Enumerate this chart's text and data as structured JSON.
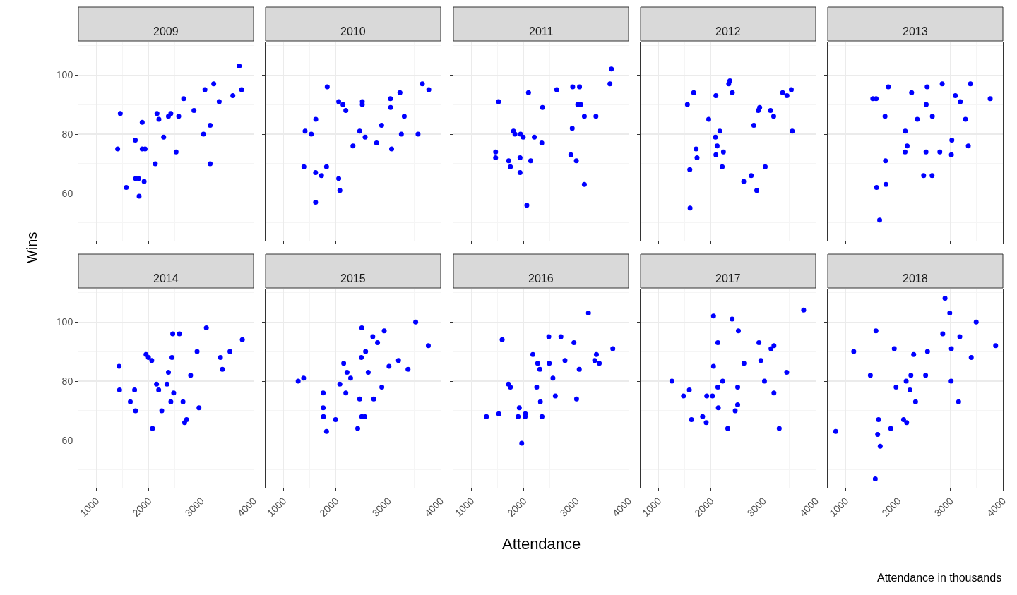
{
  "chart_data": [
    {
      "type": "scatter",
      "title": "2009",
      "ylabel": "Wins",
      "color": "#0000ff",
      "marker": "circle",
      "grid": true,
      "tick_labels": "y",
      "xlim": [
        660,
        4000
      ],
      "ylim": [
        44,
        111
      ],
      "xticks": [
        1000,
        2000,
        3000,
        4000
      ],
      "yticks": [
        60,
        80,
        100
      ],
      "x": [
        3727,
        3241,
        3073,
        3773,
        3605,
        3345,
        2668,
        2864,
        1459,
        2159,
        2423,
        2377,
        2573,
        2195,
        1877,
        3173,
        3045,
        2286,
        1745,
        1409,
        1877,
        1932,
        2523,
        2127,
        3173,
        1750,
        1809,
        1914,
        1573,
        1818
      ],
      "values": [
        103,
        97,
        95,
        95,
        93,
        91,
        92,
        88,
        87,
        87,
        87,
        86,
        86,
        85,
        84,
        83,
        80,
        79,
        78,
        75,
        75,
        75,
        74,
        70,
        70,
        65,
        65,
        64,
        62,
        59
      ]
    },
    {
      "type": "scatter",
      "title": "2010",
      "color": "#0000ff",
      "marker": "circle",
      "grid": true,
      "tick_labels": false,
      "xlim": [
        660,
        4000
      ],
      "ylim": [
        44,
        111
      ],
      "xticks": [
        1000,
        2000,
        3000,
        4000
      ],
      "yticks": [
        60,
        80,
        100
      ],
      "x": [
        1836,
        3650,
        3773,
        3223,
        3041,
        2055,
        2136,
        2191,
        2505,
        2505,
        3045,
        3305,
        1618,
        2873,
        2455,
        1414,
        1532,
        3250,
        3568,
        2559,
        2777,
        2327,
        3064,
        1391,
        1823,
        1614,
        1727,
        2055,
        2077,
        1614
      ],
      "values": [
        96,
        97,
        95,
        94,
        92,
        91,
        90,
        88,
        91,
        90,
        89,
        86,
        85,
        83,
        81,
        81,
        80,
        80,
        80,
        79,
        77,
        76,
        75,
        69,
        69,
        67,
        66,
        65,
        61,
        57
      ]
    },
    {
      "type": "scatter",
      "title": "2011",
      "color": "#0000ff",
      "marker": "circle",
      "grid": true,
      "tick_labels": false,
      "xlim": [
        660,
        4000
      ],
      "ylim": [
        44,
        111
      ],
      "xticks": [
        1000,
        2000,
        3000,
        4000
      ],
      "yticks": [
        60,
        80,
        100
      ],
      "x": [
        3673,
        3645,
        2092,
        2631,
        2935,
        3065,
        1521,
        2359,
        3032,
        3088,
        3157,
        3378,
        2926,
        1806,
        1834,
        1940,
        1991,
        2203,
        2346,
        1465,
        1465,
        1931,
        1714,
        2134,
        2899,
        3005,
        1747,
        1931,
        3157,
        2060
      ],
      "values": [
        102,
        97,
        94,
        95,
        96,
        96,
        91,
        89,
        90,
        90,
        86,
        86,
        82,
        81,
        80,
        80,
        79,
        79,
        77,
        74,
        72,
        72,
        71,
        71,
        73,
        71,
        69,
        67,
        63,
        56
      ]
    },
    {
      "type": "scatter",
      "title": "2012",
      "color": "#0000ff",
      "marker": "circle",
      "grid": true,
      "tick_labels": false,
      "xlim": [
        660,
        4000
      ],
      "ylim": [
        44,
        111
      ],
      "xticks": [
        1000,
        2000,
        3000,
        4000
      ],
      "yticks": [
        60,
        80,
        100
      ],
      "x": [
        2364,
        2341,
        1673,
        2097,
        2410,
        3369,
        3535,
        3452,
        1553,
        2931,
        2903,
        3138,
        3198,
        1959,
        2820,
        3553,
        2171,
        2088,
        1719,
        2120,
        1737,
        2097,
        2240,
        1599,
        2217,
        3037,
        2770,
        2627,
        2876,
        1604
      ],
      "values": [
        98,
        97,
        94,
        93,
        94,
        94,
        95,
        93,
        90,
        89,
        88,
        88,
        86,
        85,
        83,
        81,
        81,
        79,
        75,
        76,
        72,
        73,
        74,
        68,
        69,
        69,
        66,
        64,
        61,
        55
      ]
    },
    {
      "type": "scatter",
      "title": "2013",
      "color": "#0000ff",
      "marker": "circle",
      "grid": true,
      "tick_labels": false,
      "xlim": [
        660,
        4000
      ],
      "ylim": [
        44,
        111
      ],
      "xticks": [
        1000,
        2000,
        3000,
        4000
      ],
      "yticks": [
        60,
        80,
        100
      ],
      "x": [
        1816,
        2556,
        2843,
        3381,
        2260,
        1520,
        1583,
        3094,
        3188,
        3758,
        2538,
        1753,
        2655,
        2368,
        3287,
        2139,
        3027,
        2175,
        3341,
        2135,
        2534,
        2798,
        3018,
        1762,
        2489,
        2650,
        1592,
        1771,
        1650
      ],
      "values": [
        96,
        96,
        97,
        97,
        94,
        92,
        92,
        93,
        91,
        92,
        90,
        86,
        86,
        85,
        85,
        81,
        78,
        76,
        76,
        74,
        74,
        74,
        73,
        71,
        66,
        66,
        62,
        63,
        51
      ]
    },
    {
      "type": "scatter",
      "title": "2014",
      "color": "#0000ff",
      "marker": "circle",
      "grid": true,
      "xlim": [
        660,
        4000
      ],
      "ylim": [
        44,
        111
      ],
      "xticks": [
        1000,
        2000,
        3000,
        4000
      ],
      "yticks": [
        60,
        80,
        100
      ],
      "x": [
        3100,
        2459,
        2586,
        3786,
        2923,
        3550,
        1950,
        1995,
        2059,
        2445,
        3368,
        1436,
        3405,
        2377,
        2800,
        2150,
        2350,
        2191,
        1445,
        1732,
        2477,
        1650,
        2423,
        2655,
        2959,
        1750,
        2250,
        2723,
        2686,
        2073
      ],
      "values": [
        98,
        96,
        96,
        94,
        90,
        90,
        89,
        88,
        87,
        88,
        88,
        85,
        84,
        83,
        82,
        79,
        79,
        77,
        77,
        77,
        76,
        73,
        73,
        73,
        71,
        70,
        70,
        67,
        66,
        64
      ]
    },
    {
      "type": "scatter",
      "title": "2015",
      "color": "#0000ff",
      "marker": "circle",
      "grid": true,
      "tick_labels": "x",
      "xlim": [
        660,
        4000
      ],
      "ylim": [
        44,
        111
      ],
      "xticks": [
        1000,
        2000,
        3000,
        4000
      ],
      "yticks": [
        60,
        80,
        100
      ],
      "x": [
        3523,
        2495,
        2923,
        2705,
        2795,
        3764,
        2568,
        2486,
        3195,
        2150,
        3014,
        3377,
        2214,
        2618,
        2282,
        1386,
        1282,
        2077,
        2877,
        1759,
        2191,
        2455,
        2723,
        1759,
        1764,
        1995,
        2495,
        2550,
        1823,
        2418
      ],
      "values": [
        100,
        98,
        97,
        95,
        93,
        92,
        90,
        88,
        87,
        86,
        85,
        84,
        83,
        83,
        81,
        81,
        80,
        79,
        78,
        76,
        76,
        74,
        74,
        71,
        68,
        67,
        68,
        68,
        63,
        64
      ]
    },
    {
      "type": "scatter",
      "title": "2016",
      "xlabel": "Attendance",
      "color": "#0000ff",
      "marker": "circle",
      "grid": true,
      "tick_labels": "x",
      "xlim": [
        660,
        4000
      ],
      "ylim": [
        44,
        111
      ],
      "xticks": [
        1000,
        2000,
        3000,
        4000
      ],
      "yticks": [
        60,
        80,
        100
      ],
      "x": [
        3235,
        1590,
        2479,
        2710,
        2959,
        3700,
        2175,
        3387,
        2267,
        2488,
        3355,
        3442,
        2788,
        2309,
        3060,
        2558,
        1710,
        1747,
        2249,
        2604,
        3009,
        2318,
        1917,
        1525,
        1290,
        1894,
        2032,
        2028,
        2350,
        1963
      ],
      "values": [
        103,
        94,
        95,
        95,
        93,
        91,
        89,
        89,
        86,
        86,
        87,
        86,
        87,
        84,
        84,
        81,
        79,
        78,
        78,
        75,
        74,
        73,
        71,
        69,
        68,
        68,
        69,
        68,
        68,
        59
      ]
    },
    {
      "type": "scatter",
      "title": "2017",
      "color": "#0000ff",
      "marker": "circle",
      "grid": true,
      "tick_labels": "x",
      "xlim": [
        660,
        4000
      ],
      "ylim": [
        44,
        111
      ],
      "xticks": [
        1000,
        2000,
        3000,
        4000
      ],
      "yticks": [
        60,
        80,
        100
      ],
      "x": [
        3770,
        2051,
        2406,
        2525,
        2134,
        2917,
        3147,
        3203,
        2954,
        2631,
        2051,
        3447,
        1258,
        3023,
        2226,
        2134,
        2512,
        1590,
        1479,
        1922,
        2032,
        3203,
        2512,
        2143,
        2465,
        1631,
        1843,
        1912,
        2323,
        3304
      ],
      "values": [
        104,
        102,
        101,
        97,
        93,
        93,
        91,
        92,
        87,
        86,
        85,
        83,
        80,
        80,
        80,
        78,
        78,
        77,
        75,
        75,
        75,
        76,
        72,
        71,
        70,
        67,
        68,
        66,
        64,
        64
      ]
    },
    {
      "type": "scatter",
      "title": "2018",
      "annotations": [
        "Attendance in thousands"
      ],
      "color": "#0000ff",
      "marker": "circle",
      "grid": true,
      "tick_labels": "x",
      "xlim": [
        660,
        4000
      ],
      "ylim": [
        44,
        111
      ],
      "xticks": [
        1000,
        2000,
        3000,
        4000
      ],
      "yticks": [
        60,
        80,
        100
      ],
      "x": [
        2897,
        2987,
        3491,
        1580,
        2853,
        3179,
        3862,
        1156,
        1929,
        2563,
        3018,
        2299,
        3397,
        1473,
        2246,
        2527,
        2156,
        3013,
        1964,
        2228,
        2335,
        3156,
        1629,
        2107,
        2165,
        1862,
        813,
        1612,
        1661,
        1567
      ],
      "values": [
        108,
        103,
        100,
        97,
        96,
        95,
        92,
        90,
        91,
        90,
        91,
        89,
        88,
        82,
        82,
        82,
        80,
        80,
        78,
        77,
        73,
        73,
        67,
        67,
        66,
        64,
        63,
        62,
        58,
        47
      ]
    }
  ]
}
